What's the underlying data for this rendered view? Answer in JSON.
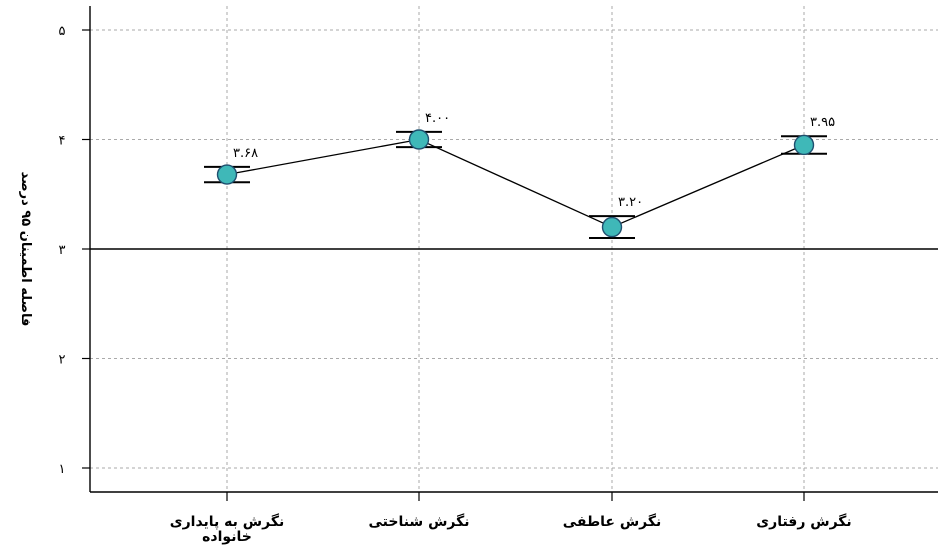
{
  "chart_data": {
    "type": "line",
    "ylabel": "فاصله اطمینان ۹۵ درصد",
    "ylim": [
      0.8,
      5.2
    ],
    "yticks": [
      {
        "value": 1,
        "label": "۱"
      },
      {
        "value": 2,
        "label": "۲"
      },
      {
        "value": 3,
        "label": "۳"
      },
      {
        "value": 4,
        "label": "۴"
      },
      {
        "value": 5,
        "label": "۵"
      }
    ],
    "reference_line": 3,
    "grid": true,
    "categories": [
      [
        "نگرش به پایداری",
        "خانواده"
      ],
      [
        "نگرش شناختی"
      ],
      [
        "نگرش عاطفی"
      ],
      [
        "نگرش رفتاری"
      ]
    ],
    "values": [
      3.68,
      4.0,
      3.2,
      3.95
    ],
    "value_labels": [
      "۳.۶۸",
      "۴.۰۰",
      "۳.۲۰",
      "۳.۹۵"
    ],
    "ci_lower": [
      3.61,
      3.93,
      3.1,
      3.87
    ],
    "ci_upper": [
      3.75,
      4.07,
      3.3,
      4.03
    ],
    "colors": {
      "marker": "#3fb8b8",
      "line": "#000000",
      "grid": "#aaaaaa"
    }
  }
}
